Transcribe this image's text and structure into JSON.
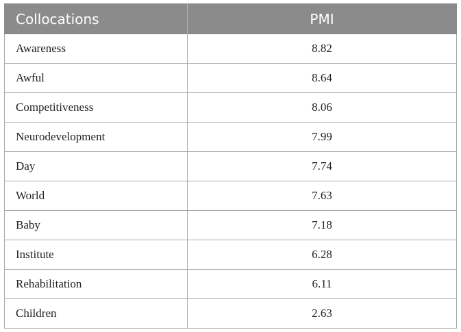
{
  "table": {
    "headers": {
      "collocations": "Collocations",
      "pmi": "PMI"
    },
    "rows": [
      {
        "collocation": "Awareness",
        "pmi": "8.82"
      },
      {
        "collocation": "Awful",
        "pmi": "8.64"
      },
      {
        "collocation": "Competitiveness",
        "pmi": "8.06"
      },
      {
        "collocation": "Neurodevelopment",
        "pmi": "7.99"
      },
      {
        "collocation": "Day",
        "pmi": "7.74"
      },
      {
        "collocation": "World",
        "pmi": "7.63"
      },
      {
        "collocation": "Baby",
        "pmi": "7.18"
      },
      {
        "collocation": "Institute",
        "pmi": "6.28"
      },
      {
        "collocation": "Rehabilitation",
        "pmi": "6.11"
      },
      {
        "collocation": "Children",
        "pmi": "2.63"
      }
    ]
  }
}
